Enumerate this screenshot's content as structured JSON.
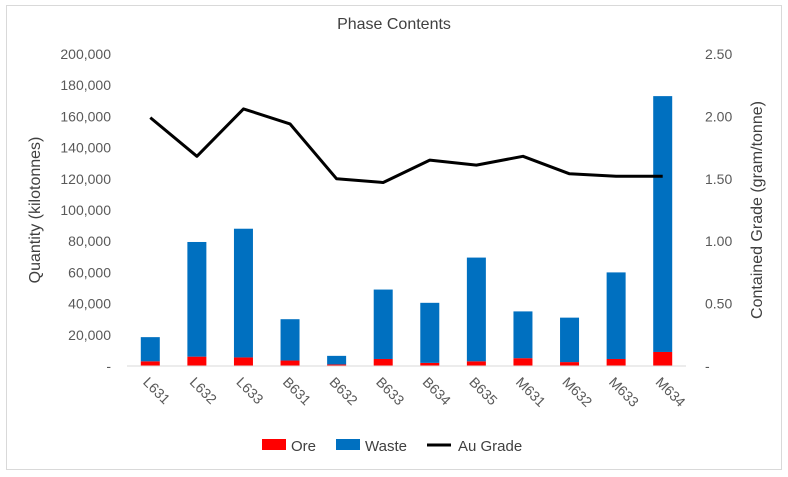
{
  "chart_data": {
    "type": "bar",
    "stacked": true,
    "title": "Phase Contents",
    "categories": [
      "L631",
      "L632",
      "L633",
      "B631",
      "B632",
      "B633",
      "B634",
      "B635",
      "M631",
      "M632",
      "M633",
      "M634"
    ],
    "series": [
      {
        "name": "Ore",
        "type": "bar",
        "axis": "left",
        "color": "#ff0000",
        "values": [
          3000,
          6000,
          5500,
          3500,
          1000,
          4500,
          2000,
          3000,
          5000,
          2500,
          4500,
          9000
        ]
      },
      {
        "name": "Waste",
        "type": "bar",
        "axis": "left",
        "color": "#0070c0",
        "values": [
          15500,
          73500,
          82500,
          26500,
          5500,
          44500,
          38500,
          66500,
          30000,
          28500,
          55500,
          164000
        ]
      },
      {
        "name": "Au Grade",
        "type": "line",
        "axis": "right",
        "color": "#000000",
        "values": [
          1.99,
          1.68,
          2.06,
          1.94,
          1.5,
          1.47,
          1.65,
          1.61,
          1.68,
          1.54,
          1.52,
          1.52
        ]
      }
    ],
    "ylabel": "Quantity (kilotonnes)",
    "ylabel_right": "Contained Grade (gram/tonne)",
    "ylim": [
      0,
      200000
    ],
    "ylim_right": [
      0,
      2.5
    ],
    "yticks": [
      "-",
      "20,000",
      "40,000",
      "60,000",
      "80,000",
      "100,000",
      "120,000",
      "140,000",
      "160,000",
      "180,000",
      "200,000"
    ],
    "yticks_right": [
      "-",
      "0.50",
      "1.00",
      "1.50",
      "2.00",
      "2.50"
    ],
    "grid": false,
    "legend": "bottom"
  }
}
